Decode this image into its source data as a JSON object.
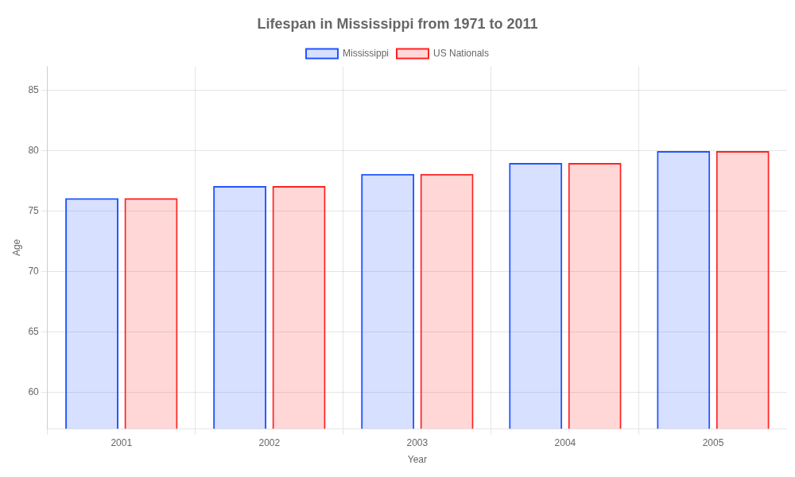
{
  "chart_data": {
    "type": "bar",
    "title": "Lifespan in Mississippi from 1971 to 2011",
    "xlabel": "Year",
    "ylabel": "Age",
    "categories": [
      "2001",
      "2002",
      "2003",
      "2004",
      "2005"
    ],
    "series": [
      {
        "name": "Mississippi",
        "color": "#2255ff",
        "values": [
          76.1,
          77.1,
          78.1,
          79.0,
          80.0
        ]
      },
      {
        "name": "US Nationals",
        "color": "#ff2222",
        "values": [
          76.1,
          77.1,
          78.1,
          79.0,
          80.0
        ]
      }
    ],
    "ylim": [
      57,
      87
    ],
    "yticks": [
      60,
      65,
      70,
      75,
      80,
      85
    ],
    "grid": true,
    "legend": "top"
  }
}
